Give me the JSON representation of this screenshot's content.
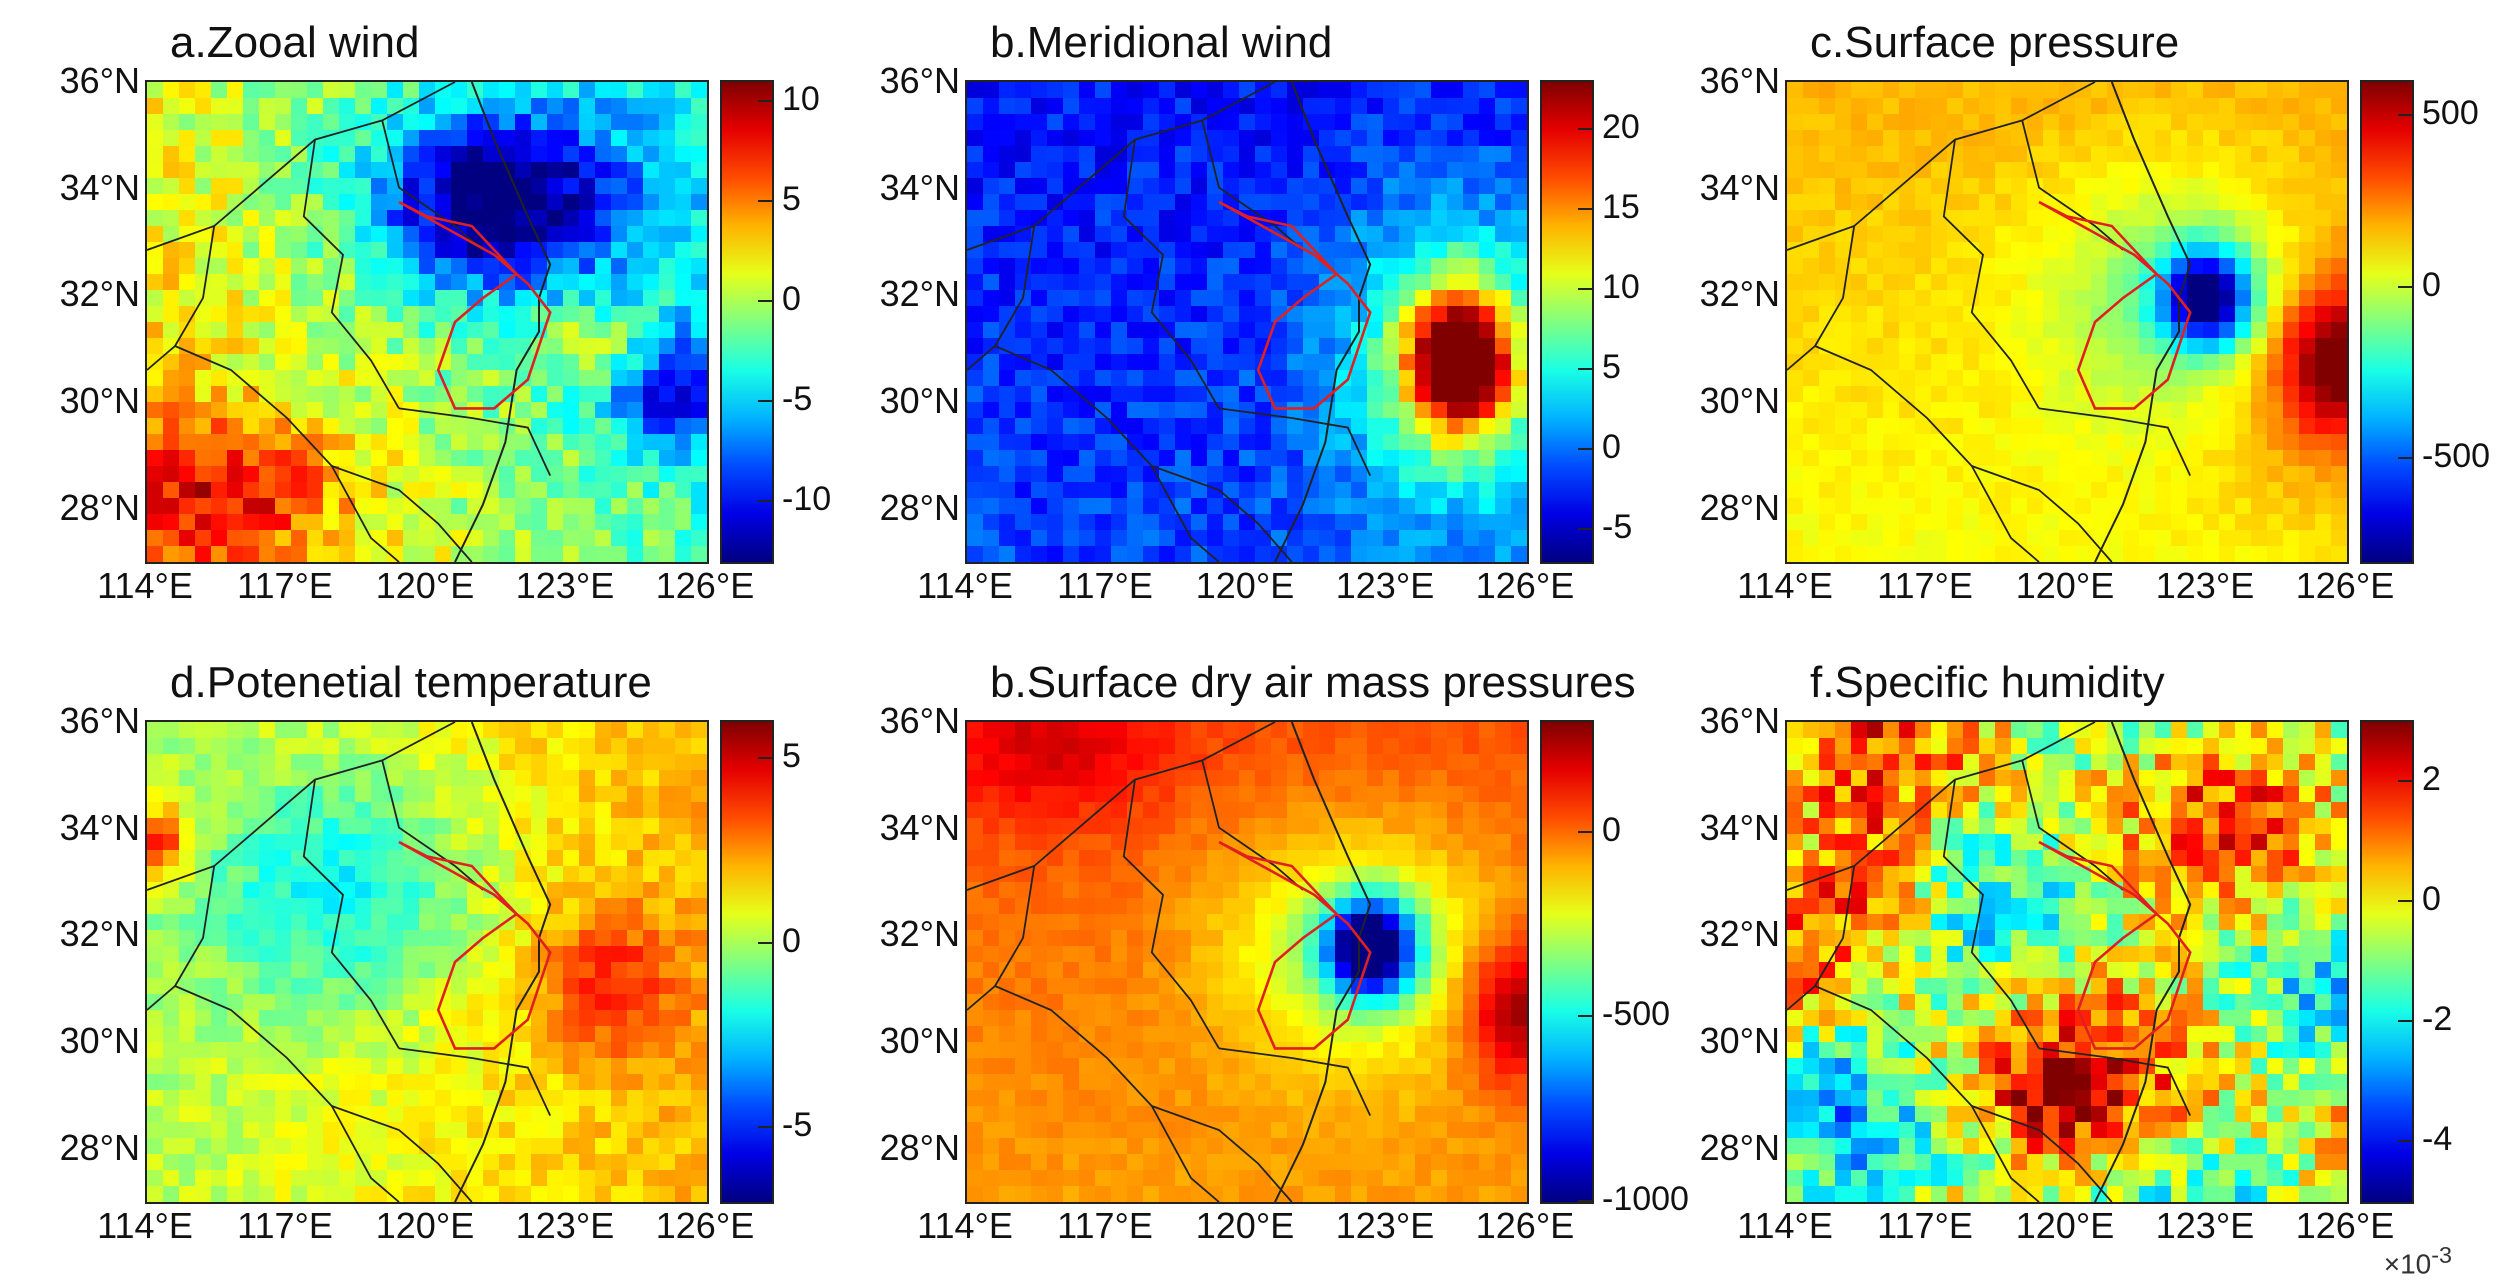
{
  "figure": {
    "panels": [
      {
        "id": "a",
        "title": "a.Zooal wind",
        "colorbar": {
          "ticks": [
            "10",
            "5",
            "0",
            "-5",
            "-10"
          ],
          "tick_values": [
            10,
            5,
            0,
            -5,
            -10
          ],
          "range": [
            -13,
            11
          ]
        },
        "pattern": "zonal"
      },
      {
        "id": "b",
        "title": "b.Meridional wind",
        "colorbar": {
          "ticks": [
            "20",
            "15",
            "10",
            "5",
            "0",
            "-5"
          ],
          "tick_values": [
            20,
            15,
            10,
            5,
            0,
            -5
          ],
          "range": [
            -7,
            23
          ]
        },
        "pattern": "meridional"
      },
      {
        "id": "c",
        "title": "c.Surface pressure",
        "colorbar": {
          "ticks": [
            "500",
            "0",
            "-500"
          ],
          "tick_values": [
            500,
            0,
            -500
          ],
          "range": [
            -800,
            600
          ]
        },
        "pattern": "pressure"
      },
      {
        "id": "d",
        "title": "d.Potenetial temperature",
        "colorbar": {
          "ticks": [
            "5",
            "0",
            "-5"
          ],
          "tick_values": [
            5,
            0,
            -5
          ],
          "range": [
            -7,
            6
          ]
        },
        "pattern": "theta"
      },
      {
        "id": "e",
        "title": "b.Surface dry air mass pressures",
        "colorbar": {
          "ticks": [
            "0",
            "-500",
            "-1000"
          ],
          "tick_values": [
            0,
            -500,
            -1000
          ],
          "range": [
            -1000,
            300
          ]
        },
        "pattern": "drymass"
      },
      {
        "id": "f",
        "title": "f.Specific humidity",
        "colorbar": {
          "ticks": [
            "2",
            "0",
            "-2",
            "-4"
          ],
          "tick_values": [
            2,
            0,
            -2,
            -4
          ],
          "range": [
            -5,
            3
          ]
        },
        "exponent": "×10-3",
        "pattern": "humidity"
      }
    ],
    "lat_labels": [
      "36°N",
      "34°N",
      "32°N",
      "30°N",
      "28°N"
    ],
    "lat_values": [
      36,
      34,
      32,
      30,
      28
    ],
    "lon_labels": [
      "114°E",
      "117°E",
      "120°E",
      "123°E",
      "126°E"
    ],
    "lon_values": [
      114,
      117,
      120,
      123,
      126
    ],
    "extent": {
      "lon": [
        114,
        126
      ],
      "lat": [
        27,
        36
      ]
    }
  }
}
